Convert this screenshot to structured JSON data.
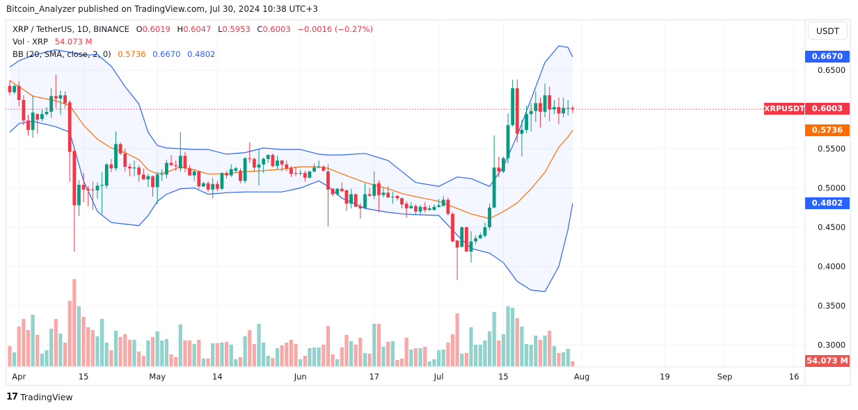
{
  "header": {
    "published": "Bitcoin_Analyzer published on TradingView.com, Jul 30, 2024 10:38 UTC+3"
  },
  "legend": {
    "symbol": "XRP / TetherUS, 1D, BINANCE",
    "o_label": "O",
    "o": "0.6019",
    "h_label": "H",
    "h": "0.6047",
    "l_label": "L",
    "l": "0.5953",
    "c_label": "C",
    "c": "0.6003",
    "change": "−0.0016 (−0.27%)",
    "vol_label": "Vol · XRP",
    "vol": "54.073 M",
    "bb_label": "BB (20, SMA, close, 2, 0)",
    "bb_mid": "0.5736",
    "bb_upper": "0.6670",
    "bb_lower": "0.4802"
  },
  "price_axis": {
    "currency": "USDT",
    "ticks": [
      "0.6500",
      "0.5500",
      "0.5000",
      "0.4500",
      "0.4000",
      "0.3500",
      "0.3000"
    ],
    "badges": {
      "upper": "0.6670",
      "last": "0.6003",
      "mid": "0.5736",
      "lower": "0.4802",
      "volume": "54.073 M",
      "symbol": "XRPUSDT"
    }
  },
  "footer": {
    "brand": "TradingView",
    "brand_mark": "17"
  },
  "colors": {
    "up": "#089981",
    "down": "#f23645",
    "bb_band": "#2962ff",
    "bb_basis": "#ff6d00",
    "vol_up": "#92d2cc",
    "vol_down": "#f7a9a7"
  },
  "chart_data": {
    "type": "candlestick",
    "title": "XRP / TetherUS, 1D, BINANCE",
    "ylabel": "USDT",
    "ylim": [
      0.28,
      0.7
    ],
    "grid": true,
    "x_ticks": [
      {
        "date": "2024-04-01",
        "label": "Apr"
      },
      {
        "date": "2024-04-15",
        "label": "15"
      },
      {
        "date": "2024-05-01",
        "label": "May"
      },
      {
        "date": "2024-05-14",
        "label": "14"
      },
      {
        "date": "2024-06-01",
        "label": "Jun"
      },
      {
        "date": "2024-06-17",
        "label": "17"
      },
      {
        "date": "2024-07-01",
        "label": "Jul"
      },
      {
        "date": "2024-07-15",
        "label": "15"
      },
      {
        "date": "2024-08-01",
        "label": "Aug"
      },
      {
        "date": "2024-08-19",
        "label": "19"
      },
      {
        "date": "2024-09-01",
        "label": "Sep"
      },
      {
        "date": "2024-09-16",
        "label": "16"
      }
    ],
    "y_ticks": [
      0.65,
      0.55,
      0.5,
      0.45,
      0.4,
      0.35,
      0.3
    ],
    "columns": [
      "date",
      "open",
      "high",
      "low",
      "close",
      "volume_M"
    ],
    "candles": [
      [
        "2024-03-30",
        0.63,
        0.637,
        0.618,
        0.622,
        224
      ],
      [
        "2024-03-31",
        0.622,
        0.632,
        0.62,
        0.63,
        154
      ],
      [
        "2024-04-01",
        0.63,
        0.636,
        0.604,
        0.612,
        439
      ],
      [
        "2024-04-02",
        0.612,
        0.618,
        0.58,
        0.586,
        524
      ],
      [
        "2024-04-03",
        0.586,
        0.593,
        0.567,
        0.574,
        401
      ],
      [
        "2024-04-04",
        0.574,
        0.618,
        0.564,
        0.596,
        571
      ],
      [
        "2024-04-05",
        0.594,
        0.595,
        0.569,
        0.587,
        347
      ],
      [
        "2024-04-06",
        0.588,
        0.6,
        0.585,
        0.594,
        139
      ],
      [
        "2024-04-07",
        0.594,
        0.603,
        0.592,
        0.597,
        177
      ],
      [
        "2024-04-08",
        0.597,
        0.627,
        0.589,
        0.617,
        416
      ],
      [
        "2024-04-09",
        0.617,
        0.644,
        0.602,
        0.614,
        524
      ],
      [
        "2024-04-10",
        0.614,
        0.624,
        0.593,
        0.618,
        362
      ],
      [
        "2024-04-11",
        0.618,
        0.623,
        0.602,
        0.608,
        262
      ],
      [
        "2024-04-12",
        0.609,
        0.612,
        0.508,
        0.546,
        725
      ],
      [
        "2024-04-13",
        0.547,
        0.55,
        0.419,
        0.478,
        964
      ],
      [
        "2024-04-14",
        0.478,
        0.51,
        0.464,
        0.504,
        663
      ],
      [
        "2024-04-15",
        0.504,
        0.519,
        0.482,
        0.498,
        547
      ],
      [
        "2024-04-16",
        0.499,
        0.503,
        0.477,
        0.497,
        432
      ],
      [
        "2024-04-17",
        0.498,
        0.508,
        0.472,
        0.497,
        401
      ],
      [
        "2024-04-18",
        0.497,
        0.507,
        0.486,
        0.503,
        332
      ],
      [
        "2024-04-19",
        0.503,
        0.52,
        0.467,
        0.504,
        524
      ],
      [
        "2024-04-20",
        0.503,
        0.532,
        0.499,
        0.53,
        262
      ],
      [
        "2024-04-21",
        0.53,
        0.537,
        0.52,
        0.525,
        177
      ],
      [
        "2024-04-22",
        0.525,
        0.572,
        0.522,
        0.556,
        393
      ],
      [
        "2024-04-23",
        0.556,
        0.558,
        0.542,
        0.544,
        324
      ],
      [
        "2024-04-24",
        0.544,
        0.55,
        0.521,
        0.527,
        355
      ],
      [
        "2024-04-25",
        0.527,
        0.531,
        0.515,
        0.525,
        293
      ],
      [
        "2024-04-26",
        0.525,
        0.535,
        0.515,
        0.526,
        293
      ],
      [
        "2024-04-27",
        0.526,
        0.529,
        0.508,
        0.517,
        162
      ],
      [
        "2024-04-28",
        0.517,
        0.525,
        0.51,
        0.511,
        116
      ],
      [
        "2024-04-29",
        0.511,
        0.518,
        0.501,
        0.515,
        285
      ],
      [
        "2024-04-30",
        0.515,
        0.516,
        0.489,
        0.501,
        324
      ],
      [
        "2024-05-01",
        0.501,
        0.521,
        0.479,
        0.517,
        386
      ],
      [
        "2024-05-02",
        0.517,
        0.524,
        0.509,
        0.518,
        285
      ],
      [
        "2024-05-03",
        0.517,
        0.536,
        0.512,
        0.532,
        301
      ],
      [
        "2024-05-04",
        0.532,
        0.542,
        0.528,
        0.529,
        131
      ],
      [
        "2024-05-05",
        0.529,
        0.535,
        0.522,
        0.528,
        100
      ],
      [
        "2024-05-06",
        0.525,
        0.571,
        0.521,
        0.541,
        463
      ],
      [
        "2024-05-07",
        0.541,
        0.546,
        0.52,
        0.525,
        285
      ],
      [
        "2024-05-08",
        0.525,
        0.529,
        0.515,
        0.516,
        285
      ],
      [
        "2024-05-09",
        0.516,
        0.524,
        0.509,
        0.521,
        247
      ],
      [
        "2024-05-10",
        0.521,
        0.522,
        0.499,
        0.502,
        293
      ],
      [
        "2024-05-11",
        0.502,
        0.508,
        0.501,
        0.506,
        85
      ],
      [
        "2024-05-12",
        0.506,
        0.509,
        0.495,
        0.498,
        85
      ],
      [
        "2024-05-13",
        0.498,
        0.513,
        0.487,
        0.505,
        254
      ],
      [
        "2024-05-14",
        0.505,
        0.509,
        0.496,
        0.499,
        254
      ],
      [
        "2024-05-15",
        0.499,
        0.52,
        0.497,
        0.519,
        262
      ],
      [
        "2024-05-16",
        0.519,
        0.522,
        0.512,
        0.516,
        270
      ],
      [
        "2024-05-17",
        0.516,
        0.53,
        0.514,
        0.524,
        239
      ],
      [
        "2024-05-18",
        0.522,
        0.527,
        0.519,
        0.525,
        77
      ],
      [
        "2024-05-19",
        0.522,
        0.525,
        0.506,
        0.509,
        100
      ],
      [
        "2024-05-20",
        0.509,
        0.539,
        0.506,
        0.538,
        332
      ],
      [
        "2024-05-21",
        0.538,
        0.558,
        0.532,
        0.537,
        401
      ],
      [
        "2024-05-22",
        0.537,
        0.539,
        0.521,
        0.526,
        247
      ],
      [
        "2024-05-23",
        0.526,
        0.549,
        0.503,
        0.53,
        470
      ],
      [
        "2024-05-24",
        0.53,
        0.539,
        0.519,
        0.537,
        262
      ],
      [
        "2024-05-25",
        0.537,
        0.543,
        0.532,
        0.542,
        116
      ],
      [
        "2024-05-26",
        0.542,
        0.544,
        0.526,
        0.528,
        93
      ],
      [
        "2024-05-27",
        0.528,
        0.541,
        0.524,
        0.535,
        200
      ],
      [
        "2024-05-28",
        0.535,
        0.536,
        0.521,
        0.53,
        231
      ],
      [
        "2024-05-29",
        0.53,
        0.535,
        0.521,
        0.525,
        262
      ],
      [
        "2024-05-30",
        0.525,
        0.528,
        0.514,
        0.518,
        293
      ],
      [
        "2024-05-31",
        0.519,
        0.527,
        0.515,
        0.518,
        247
      ],
      [
        "2024-06-01",
        0.518,
        0.523,
        0.516,
        0.519,
        77
      ],
      [
        "2024-06-02",
        0.519,
        0.522,
        0.508,
        0.513,
        116
      ],
      [
        "2024-06-03",
        0.513,
        0.522,
        0.512,
        0.521,
        200
      ],
      [
        "2024-06-04",
        0.521,
        0.531,
        0.52,
        0.526,
        208
      ],
      [
        "2024-06-05",
        0.526,
        0.535,
        0.525,
        0.527,
        208
      ],
      [
        "2024-06-06",
        0.527,
        0.529,
        0.521,
        0.522,
        239
      ],
      [
        "2024-06-07",
        0.521,
        0.53,
        0.451,
        0.498,
        447
      ],
      [
        "2024-06-08",
        0.499,
        0.5,
        0.489,
        0.492,
        131
      ],
      [
        "2024-06-09",
        0.492,
        0.5,
        0.49,
        0.499,
        77
      ],
      [
        "2024-06-10",
        0.499,
        0.507,
        0.495,
        0.496,
        208
      ],
      [
        "2024-06-11",
        0.497,
        0.498,
        0.471,
        0.48,
        347
      ],
      [
        "2024-06-12",
        0.48,
        0.499,
        0.474,
        0.492,
        278
      ],
      [
        "2024-06-13",
        0.492,
        0.493,
        0.476,
        0.476,
        239
      ],
      [
        "2024-06-14",
        0.477,
        0.481,
        0.461,
        0.474,
        316
      ],
      [
        "2024-06-15",
        0.474,
        0.506,
        0.474,
        0.492,
        146
      ],
      [
        "2024-06-16",
        0.492,
        0.5,
        0.489,
        0.49,
        139
      ],
      [
        "2024-06-17",
        0.49,
        0.521,
        0.486,
        0.505,
        470
      ],
      [
        "2024-06-18",
        0.506,
        0.51,
        0.469,
        0.491,
        470
      ],
      [
        "2024-06-19",
        0.491,
        0.5,
        0.488,
        0.494,
        216
      ],
      [
        "2024-06-20",
        0.494,
        0.502,
        0.487,
        0.488,
        270
      ],
      [
        "2024-06-21",
        0.488,
        0.495,
        0.48,
        0.489,
        278
      ],
      [
        "2024-06-22",
        0.49,
        0.491,
        0.484,
        0.487,
        69
      ],
      [
        "2024-06-23",
        0.487,
        0.488,
        0.474,
        0.479,
        85
      ],
      [
        "2024-06-24",
        0.48,
        0.483,
        0.462,
        0.474,
        316
      ],
      [
        "2024-06-25",
        0.474,
        0.482,
        0.474,
        0.477,
        185
      ],
      [
        "2024-06-26",
        0.477,
        0.479,
        0.466,
        0.47,
        200
      ],
      [
        "2024-06-27",
        0.47,
        0.478,
        0.466,
        0.476,
        200
      ],
      [
        "2024-06-28",
        0.476,
        0.482,
        0.469,
        0.472,
        216
      ],
      [
        "2024-06-29",
        0.472,
        0.478,
        0.471,
        0.474,
        54
      ],
      [
        "2024-06-30",
        0.472,
        0.479,
        0.471,
        0.476,
        77
      ],
      [
        "2024-07-01",
        0.476,
        0.486,
        0.475,
        0.478,
        177
      ],
      [
        "2024-07-02",
        0.477,
        0.49,
        0.477,
        0.485,
        185
      ],
      [
        "2024-07-03",
        0.485,
        0.488,
        0.465,
        0.467,
        262
      ],
      [
        "2024-07-04",
        0.467,
        0.469,
        0.431,
        0.432,
        355
      ],
      [
        "2024-07-05",
        0.433,
        0.434,
        0.383,
        0.424,
        586
      ],
      [
        "2024-07-06",
        0.425,
        0.451,
        0.424,
        0.45,
        139
      ],
      [
        "2024-07-07",
        0.45,
        0.451,
        0.419,
        0.419,
        146
      ],
      [
        "2024-07-08",
        0.419,
        0.445,
        0.405,
        0.432,
        432
      ],
      [
        "2024-07-09",
        0.432,
        0.44,
        0.428,
        0.436,
        239
      ],
      [
        "2024-07-10",
        0.436,
        0.443,
        0.435,
        0.44,
        239
      ],
      [
        "2024-07-11",
        0.439,
        0.456,
        0.437,
        0.45,
        285
      ],
      [
        "2024-07-12",
        0.45,
        0.48,
        0.446,
        0.475,
        386
      ],
      [
        "2024-07-13",
        0.475,
        0.567,
        0.475,
        0.526,
        601
      ],
      [
        "2024-07-14",
        0.526,
        0.54,
        0.514,
        0.521,
        285
      ],
      [
        "2024-07-15",
        0.521,
        0.54,
        0.519,
        0.538,
        355
      ],
      [
        "2024-07-16",
        0.538,
        0.595,
        0.531,
        0.58,
        663
      ],
      [
        "2024-07-17",
        0.58,
        0.638,
        0.578,
        0.627,
        648
      ],
      [
        "2024-07-18",
        0.627,
        0.638,
        0.558,
        0.569,
        532
      ],
      [
        "2024-07-19",
        0.569,
        0.587,
        0.54,
        0.574,
        439
      ],
      [
        "2024-07-20",
        0.574,
        0.605,
        0.57,
        0.594,
        247
      ],
      [
        "2024-07-21",
        0.594,
        0.608,
        0.572,
        0.598,
        239
      ],
      [
        "2024-07-22",
        0.598,
        0.623,
        0.584,
        0.608,
        339
      ],
      [
        "2024-07-23",
        0.608,
        0.615,
        0.577,
        0.597,
        293
      ],
      [
        "2024-07-24",
        0.597,
        0.633,
        0.59,
        0.618,
        339
      ],
      [
        "2024-07-25",
        0.618,
        0.629,
        0.585,
        0.6,
        393
      ],
      [
        "2024-07-26",
        0.6,
        0.612,
        0.594,
        0.603,
        224
      ],
      [
        "2024-07-27",
        0.603,
        0.615,
        0.581,
        0.595,
        146
      ],
      [
        "2024-07-28",
        0.595,
        0.615,
        0.59,
        0.602,
        154
      ],
      [
        "2024-07-29",
        0.601,
        0.612,
        0.592,
        0.602,
        193
      ],
      [
        "2024-07-30",
        0.6019,
        0.6047,
        0.5953,
        0.6003,
        54.073
      ]
    ],
    "bollinger": {
      "columns": [
        "date",
        "upper",
        "basis",
        "lower"
      ],
      "points": [
        [
          "2024-03-30",
          0.654,
          0.637,
          0.571
        ],
        [
          "2024-04-01",
          0.662,
          0.629,
          0.582
        ],
        [
          "2024-04-04",
          0.669,
          0.617,
          0.585
        ],
        [
          "2024-04-09",
          0.676,
          0.611,
          0.578
        ],
        [
          "2024-04-12",
          0.673,
          0.605,
          0.571
        ],
        [
          "2024-04-15",
          0.669,
          0.58,
          0.509
        ],
        [
          "2024-04-18",
          0.67,
          0.562,
          0.47
        ],
        [
          "2024-04-21",
          0.655,
          0.551,
          0.456
        ],
        [
          "2024-04-24",
          0.629,
          0.545,
          0.454
        ],
        [
          "2024-04-27",
          0.607,
          0.536,
          0.452
        ],
        [
          "2024-04-29",
          0.571,
          0.523,
          0.465
        ],
        [
          "2024-05-01",
          0.554,
          0.518,
          0.483
        ],
        [
          "2024-05-03",
          0.551,
          0.52,
          0.492
        ],
        [
          "2024-05-06",
          0.55,
          0.527,
          0.499
        ],
        [
          "2024-05-09",
          0.549,
          0.523,
          0.5
        ],
        [
          "2024-05-12",
          0.549,
          0.518,
          0.492
        ],
        [
          "2024-05-16",
          0.543,
          0.518,
          0.494
        ],
        [
          "2024-05-20",
          0.545,
          0.521,
          0.495
        ],
        [
          "2024-05-24",
          0.551,
          0.522,
          0.495
        ],
        [
          "2024-05-28",
          0.549,
          0.524,
          0.495
        ],
        [
          "2024-06-01",
          0.549,
          0.527,
          0.5
        ],
        [
          "2024-06-05",
          0.543,
          0.527,
          0.509
        ],
        [
          "2024-06-07",
          0.542,
          0.525,
          0.502
        ],
        [
          "2024-06-10",
          0.542,
          0.518,
          0.487
        ],
        [
          "2024-06-15",
          0.544,
          0.507,
          0.474
        ],
        [
          "2024-06-20",
          0.535,
          0.499,
          0.469
        ],
        [
          "2024-06-23",
          0.521,
          0.493,
          0.467
        ],
        [
          "2024-06-26",
          0.507,
          0.489,
          0.466
        ],
        [
          "2024-07-01",
          0.502,
          0.483,
          0.465
        ],
        [
          "2024-07-05",
          0.514,
          0.474,
          0.44
        ],
        [
          "2024-07-08",
          0.512,
          0.467,
          0.423
        ],
        [
          "2024-07-12",
          0.502,
          0.461,
          0.417
        ],
        [
          "2024-07-15",
          0.527,
          0.47,
          0.405
        ],
        [
          "2024-07-18",
          0.567,
          0.481,
          0.381
        ],
        [
          "2024-07-21",
          0.613,
          0.499,
          0.37
        ],
        [
          "2024-07-24",
          0.66,
          0.52,
          0.368
        ],
        [
          "2024-07-27",
          0.681,
          0.552,
          0.4
        ],
        [
          "2024-07-29",
          0.679,
          0.565,
          0.447
        ],
        [
          "2024-07-30",
          0.667,
          0.5736,
          0.4802
        ]
      ]
    }
  }
}
